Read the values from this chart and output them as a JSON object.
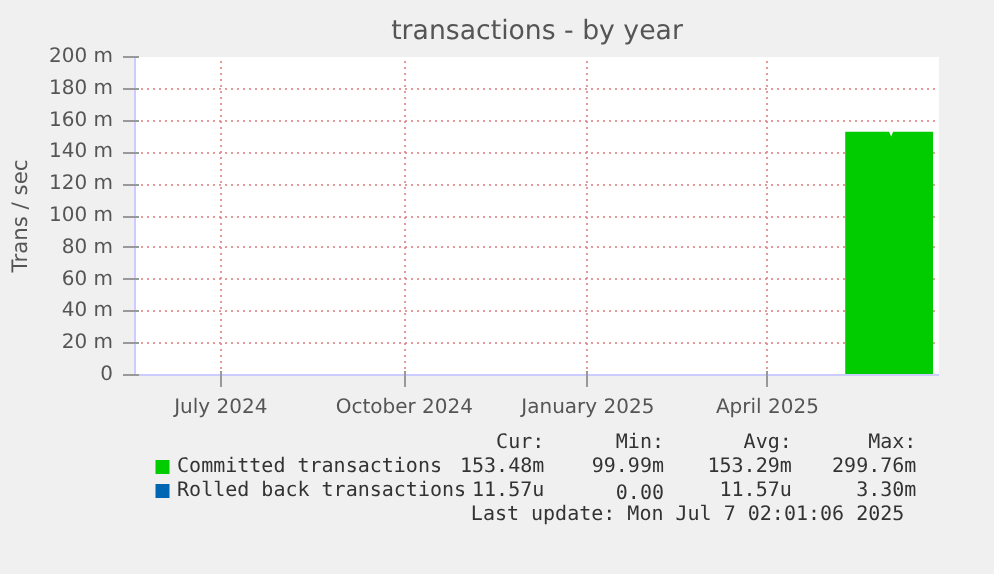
{
  "chart_data": {
    "type": "area",
    "title": "transactions - by year",
    "ylabel": "Trans / sec",
    "series": [
      {
        "name": "Committed transactions",
        "color": "#00cc00",
        "x": [
          "2025-05-25",
          "2025-06-16",
          "2025-06-17",
          "2025-06-18",
          "2025-07-08"
        ],
        "values": [
          153,
          153,
          150,
          153,
          153
        ]
      },
      {
        "name": "Rolled back transactions",
        "color": "#0066b3",
        "values": [
          null
        ]
      }
    ],
    "xlim": [
      "2024-06-03",
      "2025-07-11"
    ],
    "xticks": [
      {
        "value": "2024-07-16",
        "label": "July 2024"
      },
      {
        "value": "2024-10-16",
        "label": "October 2024"
      },
      {
        "value": "2025-01-16",
        "label": "January 2025"
      },
      {
        "value": "2025-04-16",
        "label": "April 2025"
      }
    ],
    "ylim": [
      0,
      200
    ],
    "yticks": [
      0,
      {
        "value": 20,
        "label": "20 m"
      },
      {
        "value": 40,
        "label": "40 m"
      },
      {
        "value": 60,
        "label": "60 m"
      },
      {
        "value": 80,
        "label": "80 m"
      },
      {
        "value": 100,
        "label": "100 m"
      },
      {
        "value": 120,
        "label": "120 m"
      },
      {
        "value": 140,
        "label": "140 m"
      },
      {
        "value": 160,
        "label": "160 m"
      },
      {
        "value": 180,
        "label": "180 m"
      },
      {
        "value": 200,
        "label": "200 m"
      }
    ],
    "grid": true,
    "legend": "bottom",
    "annotations": [
      "Cur:",
      "Min:",
      "Avg:",
      "Max:",
      "153.48m",
      "99.99m",
      "153.29m",
      "299.76m",
      "11.57u",
      "0.00",
      "11.57u",
      "3.30m",
      "Last update: Mon Jul  7 02:01:06 2025"
    ]
  }
}
